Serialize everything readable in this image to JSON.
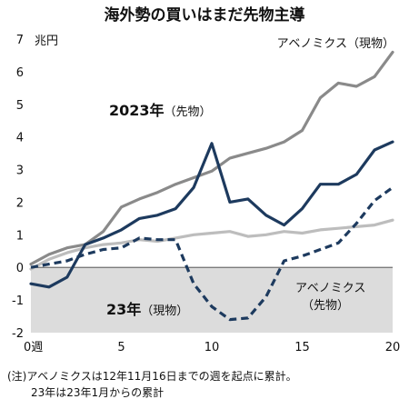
{
  "chart_data": {
    "type": "line",
    "title": "海外勢の買いはまだ先物主導",
    "ylabel": "兆円",
    "ylim": [
      -2,
      7
    ],
    "xlim": [
      0,
      20
    ],
    "yticks": [
      7,
      6,
      5,
      4,
      3,
      2,
      1,
      0,
      -1,
      -2
    ],
    "yticks_labels": [
      "7",
      "6",
      "5",
      "4",
      "3",
      "2",
      "1",
      "0",
      "-1",
      "-2"
    ],
    "xticks": [
      0,
      5,
      10,
      15,
      20
    ],
    "xticks_labels": [
      "0週",
      "5",
      "10",
      "15",
      "20"
    ],
    "grid": false,
    "negative_area_shaded": true,
    "x": [
      0,
      1,
      2,
      3,
      4,
      5,
      6,
      7,
      8,
      9,
      10,
      11,
      12,
      13,
      14,
      15,
      16,
      17,
      18,
      19,
      20
    ],
    "series": [
      {
        "name": "アベノミクス（現物）",
        "color": "#8a8a8a",
        "style": "solid",
        "values": [
          0.1,
          0.4,
          0.6,
          0.7,
          1.1,
          1.85,
          2.1,
          2.3,
          2.55,
          2.75,
          2.95,
          3.35,
          3.5,
          3.65,
          3.85,
          4.2,
          5.2,
          5.65,
          5.55,
          5.85,
          6.6
        ]
      },
      {
        "name": "2023年（先物）",
        "color": "#1d3a5e",
        "style": "solid",
        "values": [
          -0.5,
          -0.6,
          -0.3,
          0.7,
          0.9,
          1.15,
          1.5,
          1.6,
          1.8,
          2.45,
          3.8,
          2.0,
          2.1,
          1.6,
          1.3,
          1.8,
          2.55,
          2.55,
          2.85,
          3.6,
          3.85
        ]
      },
      {
        "name": "23年（現物）",
        "color": "#1d3a5e",
        "style": "dashed",
        "values": [
          0.0,
          0.1,
          0.2,
          0.4,
          0.55,
          0.6,
          0.9,
          0.85,
          0.85,
          -0.5,
          -1.2,
          -1.6,
          -1.55,
          -0.9,
          0.2,
          0.35,
          0.55,
          0.75,
          1.35,
          2.05,
          2.45
        ]
      },
      {
        "name": "アベノミクス（先物）",
        "color": "#bdbdbd",
        "style": "solid",
        "values": [
          -0.05,
          0.25,
          0.45,
          0.6,
          0.7,
          0.75,
          0.85,
          0.8,
          0.9,
          1.0,
          1.05,
          1.1,
          0.95,
          1.0,
          1.1,
          1.05,
          1.15,
          1.2,
          1.25,
          1.3,
          1.45
        ]
      }
    ],
    "labels": {
      "abe_spot": "アベノミクス（現物）",
      "y2023_futures_year": "2023年",
      "y2023_futures_suffix": "（先物）",
      "y23_spot_year": "23年",
      "y23_spot_suffix": "（現物）",
      "abe_futures_line1": "アベノミクス",
      "abe_futures_line2": "（先物）"
    },
    "notes": [
      "(注)アベノミクスは12年11月16日までの週を起点に累計。",
      "23年は23年1月からの累計"
    ]
  }
}
